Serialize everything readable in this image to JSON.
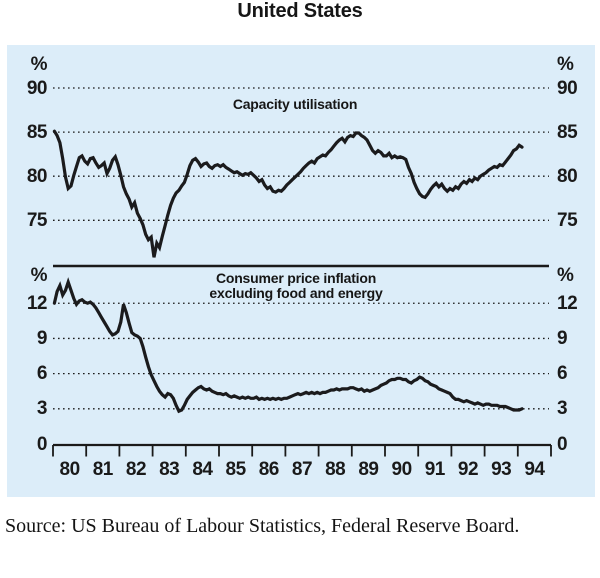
{
  "title": "United States",
  "source_note": "Source: US Bureau of Labour Statistics, Federal Reserve Board.",
  "colors": {
    "panel_background": "#dcedf9",
    "line": "#1b1b1d",
    "grid": "#1a1a1a",
    "text": "#1a1a1a",
    "page_background": "#ffffff"
  },
  "x_axis": {
    "start_year": 1980,
    "end_year": 1995,
    "tick_labels": [
      "80",
      "81",
      "82",
      "83",
      "84",
      "85",
      "86",
      "87",
      "88",
      "89",
      "90",
      "91",
      "92",
      "93",
      "94"
    ],
    "zero_label_left": "0",
    "zero_label_right": "0"
  },
  "chart_data": [
    {
      "type": "line",
      "panel": "top",
      "title": "Capacity utilisation",
      "unit_left": "%",
      "unit_right": "%",
      "ylabel_ticks": [
        90,
        85,
        80,
        75
      ],
      "ylim": [
        70,
        92
      ],
      "grid": "dotted",
      "x_start_year": 1980,
      "points_per_year": 12,
      "values": [
        85.1,
        84.6,
        83.8,
        82.0,
        79.9,
        78.6,
        78.9,
        80.1,
        81.1,
        82.1,
        82.3,
        81.7,
        81.4,
        82.0,
        82.1,
        81.5,
        81.0,
        81.2,
        81.5,
        80.3,
        80.9,
        81.8,
        82.2,
        81.3,
        80.1,
        78.8,
        78.0,
        77.4,
        76.5,
        77.0,
        75.8,
        75.2,
        74.5,
        73.4,
        72.8,
        73.1,
        70.8,
        72.4,
        71.9,
        73.2,
        74.4,
        75.6,
        76.7,
        77.5,
        78.1,
        78.4,
        78.9,
        79.3,
        80.2,
        81.2,
        81.8,
        82.0,
        81.6,
        81.1,
        81.4,
        81.5,
        81.1,
        80.9,
        81.2,
        81.3,
        81.1,
        81.3,
        81.0,
        80.8,
        80.6,
        80.4,
        80.5,
        80.3,
        80.1,
        80.3,
        80.2,
        80.4,
        80.1,
        79.8,
        79.4,
        79.6,
        79.0,
        78.6,
        78.8,
        78.3,
        78.2,
        78.4,
        78.3,
        78.6,
        79.0,
        79.3,
        79.6,
        79.9,
        80.2,
        80.5,
        80.9,
        81.2,
        81.5,
        81.7,
        81.5,
        82.0,
        82.2,
        82.4,
        82.3,
        82.7,
        83.0,
        83.4,
        83.8,
        84.1,
        84.3,
        83.9,
        84.4,
        84.6,
        84.5,
        84.9,
        84.9,
        84.6,
        84.4,
        84.1,
        83.5,
        82.9,
        82.6,
        82.9,
        82.7,
        82.3,
        82.3,
        82.6,
        82.1,
        82.3,
        82.1,
        82.2,
        82.1,
        81.9,
        81.0,
        80.3,
        79.3,
        78.6,
        78.0,
        77.7,
        77.6,
        78.0,
        78.5,
        78.9,
        79.2,
        78.8,
        79.1,
        78.6,
        78.3,
        78.6,
        78.4,
        78.8,
        78.6,
        79.1,
        79.4,
        79.2,
        79.6,
        79.4,
        79.8,
        79.6,
        80.0,
        80.2,
        80.4,
        80.7,
        80.9,
        81.1,
        81.0,
        81.3,
        81.2,
        81.6,
        82.0,
        82.4,
        82.9,
        83.1,
        83.5,
        83.3
      ]
    },
    {
      "type": "line",
      "panel": "bottom",
      "title": "Consumer price inflation excluding food and energy",
      "title_lines": [
        "Consumer price inflation",
        "excluding food and energy"
      ],
      "unit_left": "%",
      "unit_right": "%",
      "ylabel_ticks": [
        12,
        9,
        6,
        3
      ],
      "zero_label": "0",
      "ylim": [
        0,
        15
      ],
      "grid": "dotted",
      "x_start_year": 1980,
      "points_per_year": 12,
      "values": [
        12.0,
        13.0,
        13.5,
        12.7,
        13.1,
        13.8,
        13.1,
        12.4,
        11.9,
        12.2,
        12.3,
        12.1,
        12.0,
        12.1,
        11.9,
        11.6,
        11.2,
        10.8,
        10.4,
        10.0,
        9.6,
        9.3,
        9.4,
        9.6,
        10.4,
        11.9,
        11.2,
        10.3,
        9.5,
        9.3,
        9.2,
        9.0,
        8.3,
        7.4,
        6.6,
        5.9,
        5.4,
        4.9,
        4.5,
        4.2,
        4.0,
        4.3,
        4.2,
        3.9,
        3.3,
        2.8,
        2.9,
        3.3,
        3.8,
        4.1,
        4.4,
        4.6,
        4.8,
        4.9,
        4.7,
        4.6,
        4.7,
        4.5,
        4.4,
        4.3,
        4.3,
        4.2,
        4.3,
        4.1,
        4.0,
        4.1,
        4.0,
        3.9,
        4.0,
        3.9,
        4.0,
        3.9,
        3.9,
        4.0,
        3.8,
        3.9,
        3.8,
        3.9,
        3.8,
        3.9,
        3.8,
        3.9,
        3.8,
        3.9,
        3.9,
        4.0,
        4.1,
        4.2,
        4.3,
        4.2,
        4.3,
        4.4,
        4.3,
        4.4,
        4.3,
        4.4,
        4.3,
        4.4,
        4.4,
        4.5,
        4.6,
        4.6,
        4.7,
        4.6,
        4.7,
        4.7,
        4.7,
        4.8,
        4.8,
        4.7,
        4.6,
        4.7,
        4.5,
        4.6,
        4.5,
        4.6,
        4.7,
        4.8,
        5.0,
        5.1,
        5.2,
        5.4,
        5.5,
        5.5,
        5.6,
        5.6,
        5.5,
        5.5,
        5.3,
        5.2,
        5.4,
        5.5,
        5.7,
        5.6,
        5.4,
        5.3,
        5.1,
        5.0,
        4.9,
        4.7,
        4.6,
        4.5,
        4.4,
        4.3,
        4.0,
        3.8,
        3.8,
        3.7,
        3.6,
        3.7,
        3.6,
        3.5,
        3.4,
        3.5,
        3.4,
        3.3,
        3.4,
        3.4,
        3.3,
        3.3,
        3.3,
        3.2,
        3.2,
        3.2,
        3.1,
        3.0,
        2.9,
        2.9,
        2.9,
        3.0
      ]
    }
  ]
}
